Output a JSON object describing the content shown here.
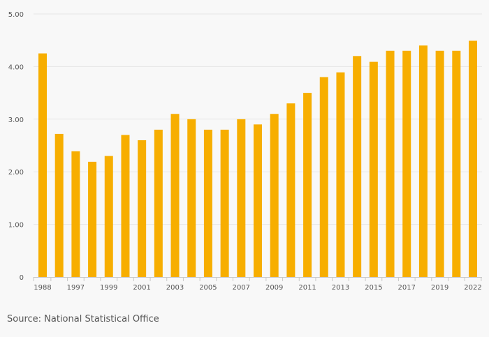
{
  "chart_data": {
    "type": "bar",
    "title": "",
    "xlabel": "",
    "ylabel": "",
    "categories": [
      "1988",
      "",
      "1997",
      "",
      "1999",
      "",
      "2001",
      "",
      "2003",
      "",
      "2005",
      "",
      "2007",
      "",
      "2009",
      "",
      "2011",
      "",
      "2013",
      "",
      "2015",
      "",
      "2017",
      "",
      "2019",
      "",
      "2022"
    ],
    "x_tick_labels": [
      "1988",
      "1997",
      "1999",
      "2001",
      "2003",
      "2005",
      "2007",
      "2009",
      "2011",
      "2013",
      "2015",
      "2017",
      "2019",
      "2022"
    ],
    "values": [
      4.25,
      2.72,
      2.39,
      2.19,
      2.3,
      2.7,
      2.6,
      2.8,
      3.1,
      3.0,
      2.8,
      2.8,
      3.0,
      2.9,
      3.1,
      3.3,
      3.5,
      3.8,
      3.89,
      4.2,
      4.09,
      4.3,
      4.3,
      4.4,
      4.3,
      4.3,
      4.49
    ],
    "ylim": [
      0,
      5
    ],
    "y_ticks": [
      0,
      1,
      2,
      3,
      4,
      5
    ],
    "y_tick_labels": [
      "0",
      "1.00",
      "2.00",
      "3.00",
      "4.00",
      "5.00"
    ],
    "grid": true,
    "bar_color": "#f7ae00",
    "grid_color": "#e6e6e6"
  },
  "source": "Source: National Statistical Office"
}
